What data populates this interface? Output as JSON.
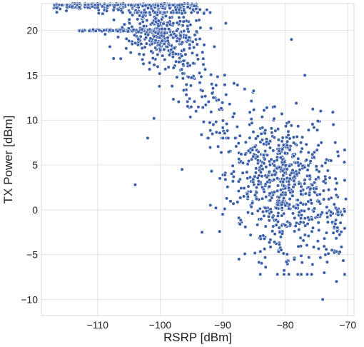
{
  "chart_data": {
    "type": "scatter",
    "title": "",
    "xlabel": "RSRP [dBm]",
    "ylabel": "TX Power [dBm]",
    "xlim": [
      -119,
      -69
    ],
    "ylim": [
      -11.8,
      23
    ],
    "xticks": [
      -110,
      -100,
      -90,
      -80,
      -70
    ],
    "yticks": [
      -10,
      -5,
      0,
      5,
      10,
      15,
      20
    ],
    "grid": true,
    "legend": "none",
    "point_color": "#3a5fa8",
    "series": [
      {
        "points_approx": 1600,
        "points": [
          [
            -117,
            22.5
          ],
          [
            -116,
            22.4
          ],
          [
            -115,
            22.2
          ],
          [
            -114,
            23
          ],
          [
            -112,
            23
          ],
          [
            -111,
            22.8
          ],
          [
            -110,
            23
          ],
          [
            -109,
            22.6
          ],
          [
            -108,
            22.8
          ],
          [
            -107,
            23
          ],
          [
            -106,
            22.5
          ],
          [
            -105,
            22.2
          ],
          [
            -104,
            22
          ],
          [
            -103,
            22
          ],
          [
            -102,
            22
          ],
          [
            -101,
            22
          ],
          [
            -100,
            22
          ],
          [
            -99,
            22
          ],
          [
            -98,
            22
          ],
          [
            -97,
            22
          ],
          [
            -96,
            22
          ],
          [
            -95,
            22
          ],
          [
            -94,
            22
          ],
          [
            -93,
            22
          ],
          [
            -92,
            22
          ],
          [
            -113,
            20
          ],
          [
            -112,
            20
          ],
          [
            -111,
            20
          ],
          [
            -110,
            20
          ],
          [
            -109,
            20
          ],
          [
            -108,
            20
          ],
          [
            -107,
            20
          ],
          [
            -106,
            20
          ],
          [
            -105,
            20
          ],
          [
            -104,
            20
          ],
          [
            -103,
            20
          ],
          [
            -102,
            20
          ],
          [
            -101,
            20
          ],
          [
            -100,
            20
          ],
          [
            -91.2,
            12.5
          ],
          [
            -74,
            -10.0
          ],
          [
            -104,
            2.8
          ],
          [
            -102,
            8.0
          ],
          [
            -89.5,
            20.8
          ],
          [
            -72.3,
            9.5
          ],
          [
            -72.0,
            7.5
          ],
          [
            -71.5,
            6.0
          ],
          [
            -71.8,
            -8.0
          ],
          [
            -70.3,
            1.2
          ],
          [
            -79.0,
            19.0
          ],
          [
            -91.5,
            9.5
          ],
          [
            -93.3,
            -2.5
          ],
          [
            -96.5,
            4.5
          ],
          [
            -101,
            10.2
          ]
        ]
      }
    ]
  }
}
